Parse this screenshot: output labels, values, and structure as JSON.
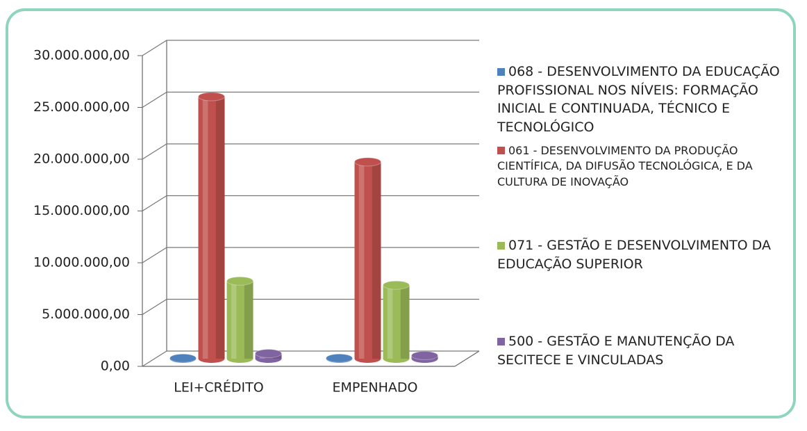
{
  "chart_data": {
    "type": "bar",
    "categories": [
      "LEI+CRÉDITO",
      "EMPENHADO"
    ],
    "series": [
      {
        "name": "068 - DESENVOLVIMENTO DA EDUCAÇÃO PROFISSIONAL NOS NÍVEIS: FORMAÇÃO INICIAL E CONTINUADA, TÉCNICO E TECNOLÓGICO",
        "color": "#4f81bd",
        "values": [
          50000,
          50000
        ]
      },
      {
        "name": "061 - DESENVOLVIMENTO DA PRODUÇÃO CIENTÍFICA, DA DIFUSÃO TECNOLÓGICA, E DA CULTURA DE INOVAÇÃO",
        "color": "#c0504d",
        "values": [
          25300000,
          19000000
        ]
      },
      {
        "name": "071 - GESTÃO E DESENVOLVIMENTO DA EDUCAÇÃO SUPERIOR",
        "color": "#9bbb59",
        "values": [
          7500000,
          7100000
        ]
      },
      {
        "name": "500 - GESTÃO E MANUTENÇÃO DA SECITECE E VINCULADAS",
        "color": "#8064a2",
        "values": [
          500000,
          300000
        ]
      }
    ],
    "ylim": [
      0,
      30000000
    ],
    "yticks": [
      {
        "value": 0,
        "label": "0,00"
      },
      {
        "value": 5000000,
        "label": "5.000.000,00"
      },
      {
        "value": 10000000,
        "label": "10.000.000,00"
      },
      {
        "value": 15000000,
        "label": "15.000.000,00"
      },
      {
        "value": 20000000,
        "label": "20.000.000,00"
      },
      {
        "value": 25000000,
        "label": "25.000.000,00"
      },
      {
        "value": 30000000,
        "label": "30.000.000,00"
      }
    ],
    "grid": true
  }
}
